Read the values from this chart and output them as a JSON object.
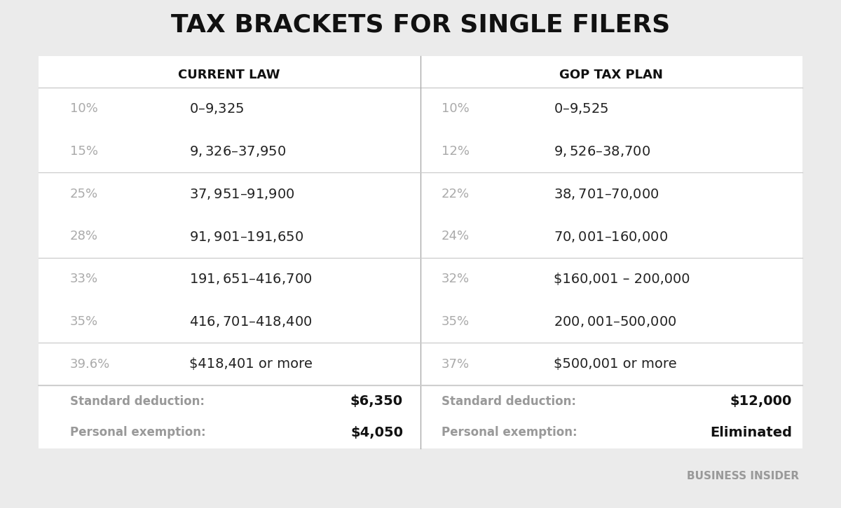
{
  "title": "TAX BRACKETS FOR SINGLE FILERS",
  "background_color": "#ebebeb",
  "table_background": "#ffffff",
  "col_header_left": "CURRENT LAW",
  "col_header_right": "GOP TAX PLAN",
  "current_law": [
    {
      "rate": "10%",
      "range": "$0 – $9,325"
    },
    {
      "rate": "15%",
      "range": "$9,326 – $37,950"
    },
    {
      "rate": "25%",
      "range": "$37,951 – $91,900"
    },
    {
      "rate": "28%",
      "range": "$91,901 – $191,650"
    },
    {
      "rate": "33%",
      "range": "$191,651 – $416,700"
    },
    {
      "rate": "35%",
      "range": "$416,701 – $418,400"
    },
    {
      "rate": "39.6%",
      "range": "$418,401 or more"
    }
  ],
  "gop_plan": [
    {
      "rate": "10%",
      "range": "$0 – $9,525"
    },
    {
      "rate": "12%",
      "range": "$9,526 – $38,700"
    },
    {
      "rate": "22%",
      "range": "$38,701 – $70,000"
    },
    {
      "rate": "24%",
      "range": "$70,001 – $160,000"
    },
    {
      "rate": "32%",
      "range": "$160,001 – 200,000"
    },
    {
      "rate": "35%",
      "range": "$200,001 – $500,000"
    },
    {
      "rate": "37%",
      "range": "$500,001 or more"
    }
  ],
  "current_deduction": "$6,350",
  "current_exemption": "$4,050",
  "gop_deduction": "$12,000",
  "gop_exemption": "Eliminated",
  "rate_color": "#aaaaaa",
  "range_color": "#222222",
  "header_color": "#111111",
  "deduction_label_color": "#999999",
  "deduction_value_color": "#111111",
  "divider_color": "#cccccc",
  "vertical_divider_color": "#aaaaaa",
  "footer_text": "BUSINESS INSIDER",
  "footer_color": "#999999",
  "title_color": "#111111"
}
